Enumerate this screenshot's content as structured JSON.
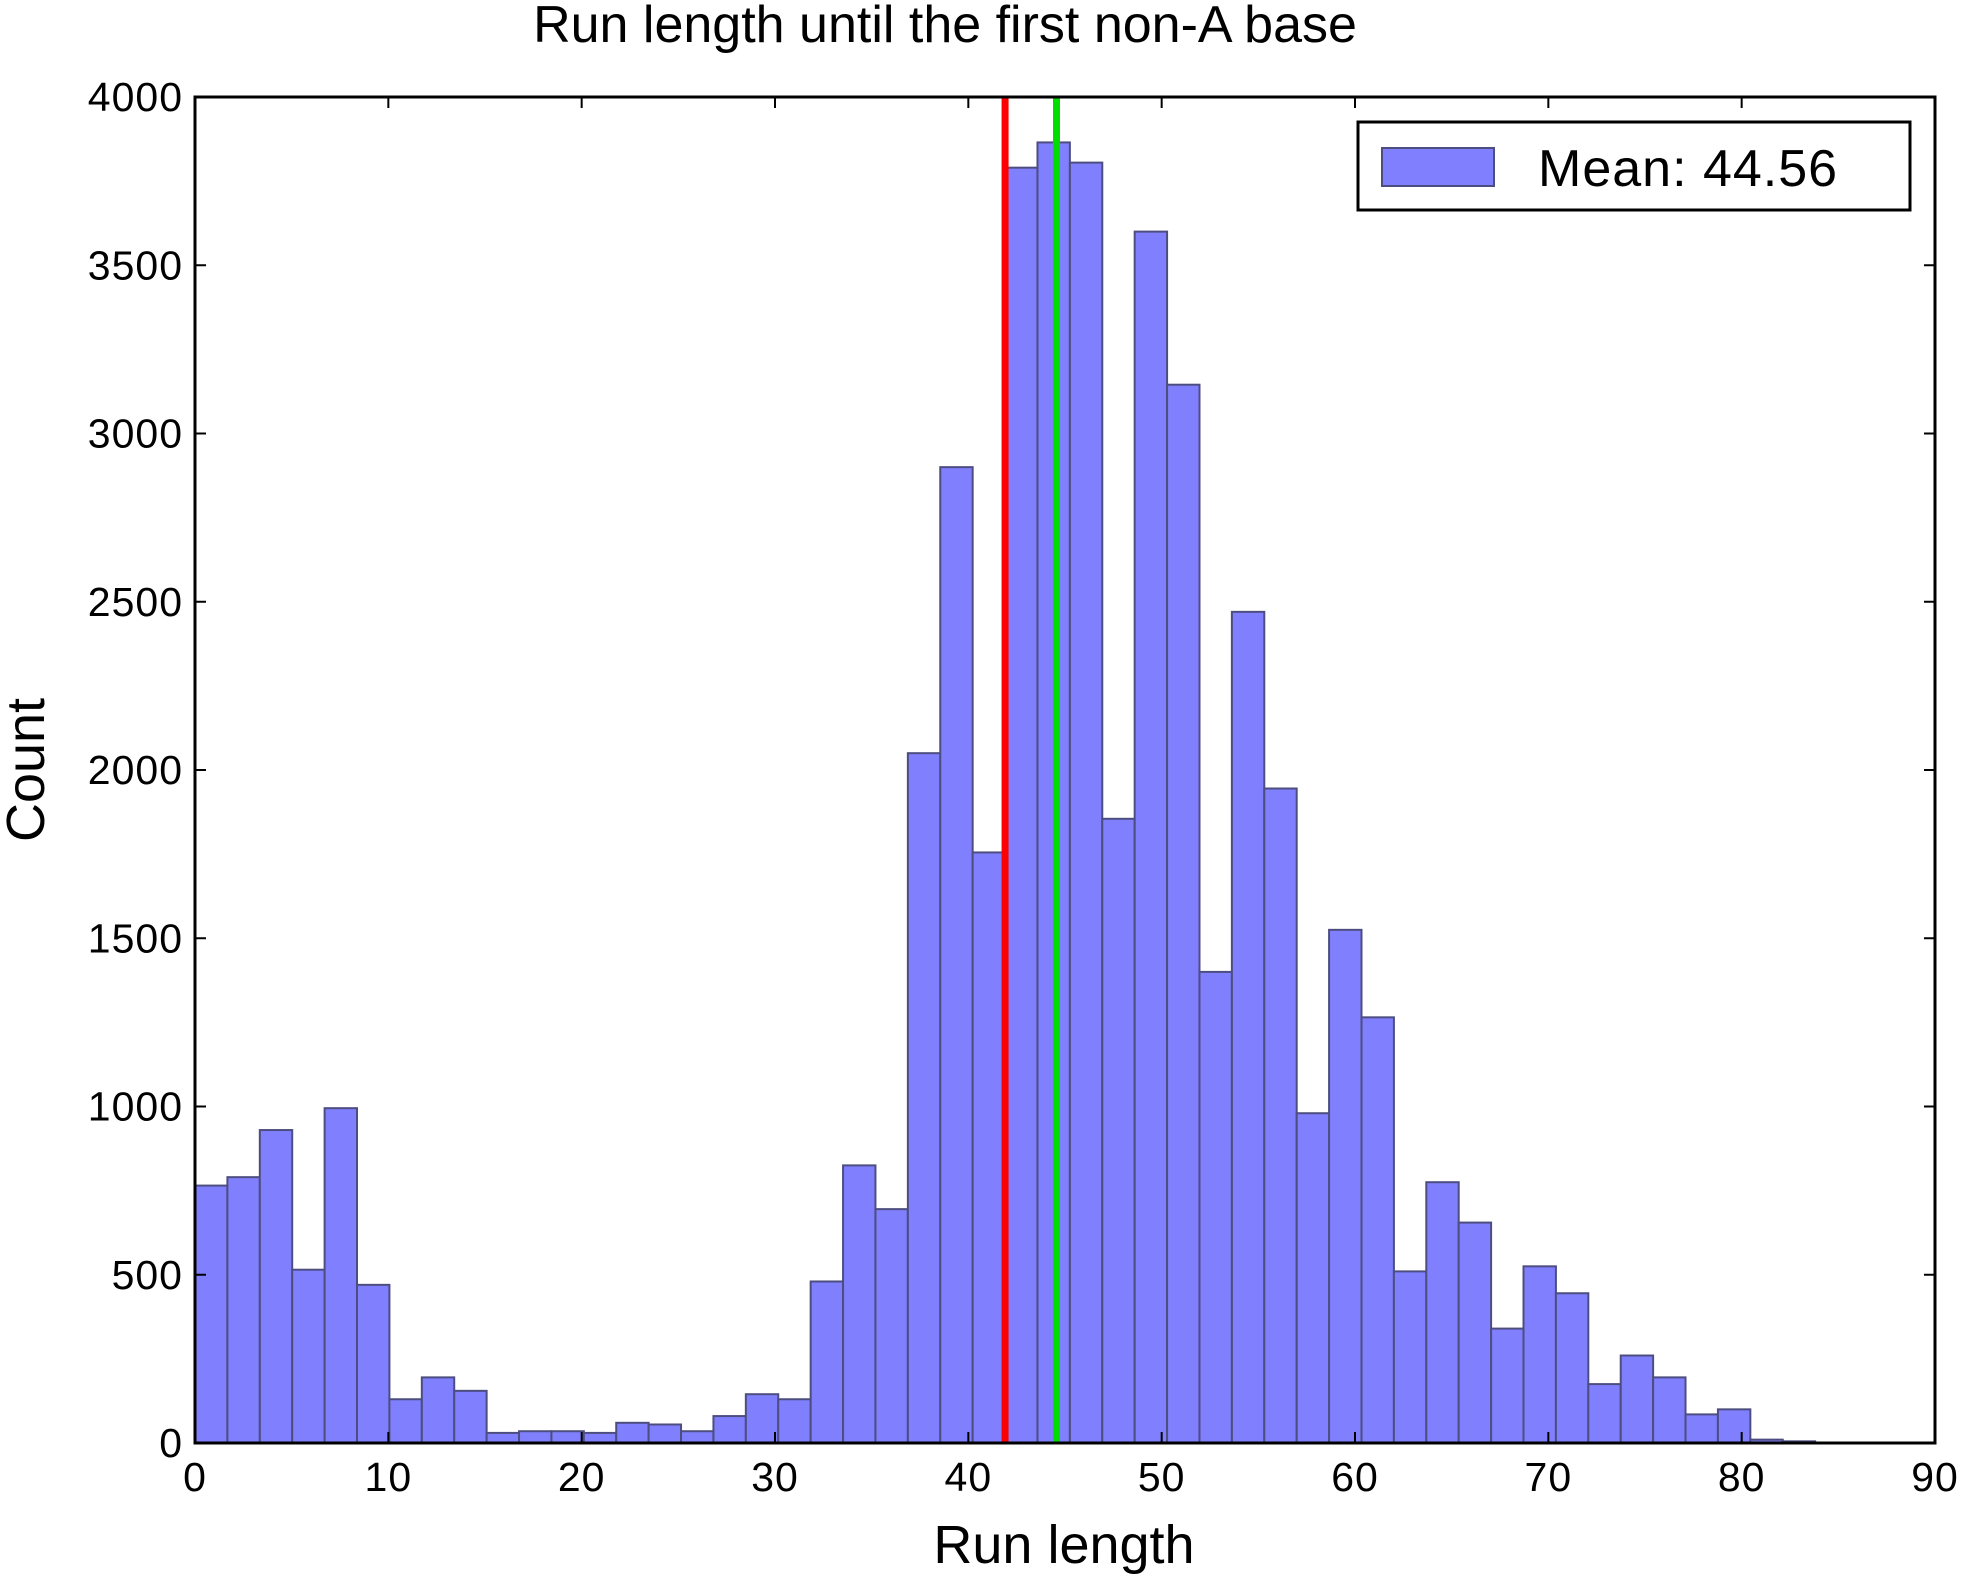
{
  "chart_data": {
    "type": "bar",
    "title": "Run length until the first non-A base",
    "xlabel": "Run length",
    "ylabel": "Count",
    "xlim": [
      0,
      90
    ],
    "ylim": [
      0,
      4000
    ],
    "xticks": [
      "0",
      "10",
      "20",
      "30",
      "40",
      "50",
      "60",
      "70",
      "80",
      "90"
    ],
    "yticks": [
      "0",
      "500",
      "1000",
      "1500",
      "2000",
      "2500",
      "3000",
      "3500",
      "4000"
    ],
    "bin_width": 1.676,
    "bin_starts": [
      0,
      1.676,
      3.352,
      5.028,
      6.704,
      8.38,
      10.056,
      11.732,
      13.408,
      15.084,
      16.76,
      18.436,
      20.112,
      21.788,
      23.464,
      25.14,
      26.816,
      28.492,
      30.168,
      31.844,
      33.52,
      35.196,
      36.872,
      38.548,
      40.224,
      41.9,
      43.576,
      45.252,
      46.928,
      48.604,
      50.28,
      51.956,
      53.632,
      55.308,
      56.984,
      58.66,
      60.336,
      62.012,
      63.688,
      65.364,
      67.04,
      68.716,
      70.392,
      72.068,
      73.744,
      75.42,
      77.096,
      78.772,
      80.448,
      82.124
    ],
    "values": [
      765,
      790,
      930,
      515,
      995,
      470,
      130,
      195,
      155,
      30,
      35,
      35,
      30,
      60,
      55,
      35,
      80,
      145,
      130,
      480,
      825,
      695,
      2050,
      2900,
      1755,
      3790,
      3865,
      3805,
      1855,
      3600,
      3145,
      1400,
      2470,
      1945,
      980,
      1525,
      1265,
      510,
      775,
      655,
      340,
      525,
      445,
      175,
      260,
      195,
      85,
      100,
      10,
      5
    ],
    "bar_color": "#8080ff",
    "bar_edge_color": "#4d4d80",
    "vlines": [
      {
        "x": 41.9,
        "color": "#ff0000"
      },
      {
        "x": 44.56,
        "color": "#00dd00"
      }
    ],
    "legend": {
      "label": "Mean: 44.56",
      "location": "upper right"
    },
    "grid": false
  }
}
